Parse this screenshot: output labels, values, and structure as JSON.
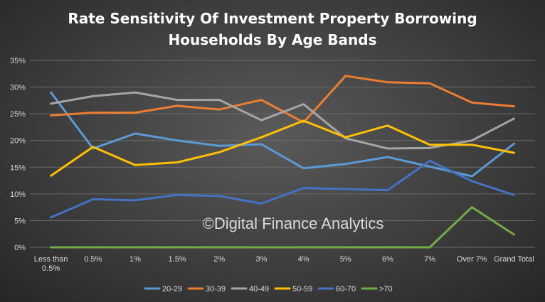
{
  "chart_data": {
    "type": "line",
    "title_lines": [
      "Rate Sensitivity  Of Investment Property Borrowing",
      "Households By Age Bands"
    ],
    "xlabel": "",
    "ylabel": "",
    "categories": [
      [
        "Less than",
        "0.5%"
      ],
      [
        "0.5%"
      ],
      [
        "1%"
      ],
      [
        "1.5%"
      ],
      [
        "2%"
      ],
      [
        "3%"
      ],
      [
        "4%"
      ],
      [
        "5%"
      ],
      [
        "6%"
      ],
      [
        "7%"
      ],
      [
        "Over 7%"
      ],
      [
        "Grand Total"
      ]
    ],
    "ylim": [
      0,
      35
    ],
    "yticks": [
      0,
      5,
      10,
      15,
      20,
      25,
      30,
      35
    ],
    "ytick_labels": [
      "0%",
      "5%",
      "10%",
      "15%",
      "20%",
      "25%",
      "30%",
      "35%"
    ],
    "grid": true,
    "legend_position": "bottom",
    "series": [
      {
        "name": "20-29",
        "color": "#5b9bd5",
        "values": [
          29.0,
          18.5,
          21.3,
          20.0,
          19.0,
          19.3,
          14.8,
          15.6,
          16.9,
          15.1,
          13.3,
          19.4
        ]
      },
      {
        "name": "30-39",
        "color": "#ed7d31",
        "values": [
          24.7,
          25.2,
          25.2,
          26.5,
          25.8,
          27.6,
          23.4,
          32.1,
          30.9,
          30.7,
          27.1,
          26.4
        ]
      },
      {
        "name": "40-49",
        "color": "#a5a5a5",
        "values": [
          26.9,
          28.3,
          29.0,
          27.6,
          27.6,
          23.8,
          26.8,
          20.4,
          18.5,
          18.6,
          20.0,
          24.1
        ]
      },
      {
        "name": "50-59",
        "color": "#ffc000",
        "values": [
          13.4,
          18.8,
          15.4,
          15.9,
          17.8,
          20.6,
          23.7,
          20.6,
          22.8,
          19.2,
          19.2,
          17.7
        ]
      },
      {
        "name": "60-70",
        "color": "#4472c4",
        "values": [
          5.6,
          9.0,
          8.8,
          9.8,
          9.6,
          8.2,
          11.1,
          10.9,
          10.7,
          16.2,
          12.4,
          9.8
        ]
      },
      {
        "name": ">70",
        "color": "#70ad47",
        "values": [
          0.0,
          0.0,
          0.0,
          0.0,
          0.0,
          0.0,
          0.0,
          0.0,
          0.0,
          0.0,
          7.5,
          2.4
        ]
      }
    ],
    "watermark": "©Digital Finance Analytics"
  }
}
